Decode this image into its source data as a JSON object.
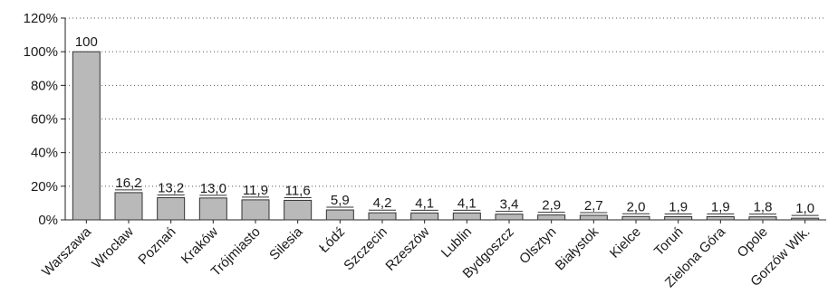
{
  "chart_data": {
    "type": "bar",
    "title": "",
    "xlabel": "",
    "ylabel": "",
    "ylim": [
      0,
      120
    ],
    "yticks": [
      0,
      20,
      40,
      60,
      80,
      100,
      120
    ],
    "ytick_labels": [
      "0%",
      "20%",
      "40%",
      "60%",
      "80%",
      "100%",
      "120%"
    ],
    "grid": true,
    "legend": "none",
    "bar_color": "#b9b9b9",
    "categories": [
      "Warszawa",
      "Wrocław",
      "Poznań",
      "Kraków",
      "Trójmiasto",
      "Silesia",
      "Łódź",
      "Szczecin",
      "Rzeszów",
      "Lublin",
      "Bydgoszcz",
      "Olsztyn",
      "Białystok",
      "Kielce",
      "Toruń",
      "Zielona Góra",
      "Opole",
      "Gorzów Wlk."
    ],
    "values": [
      100,
      16.2,
      13.2,
      13.0,
      11.9,
      11.6,
      5.9,
      4.2,
      4.1,
      4.1,
      3.4,
      2.9,
      2.7,
      2.0,
      1.9,
      1.9,
      1.8,
      1.0
    ],
    "value_labels": [
      "100",
      "16,2",
      "13,2",
      "13,0",
      "11,9",
      "11,6",
      "5,9",
      "4,2",
      "4,1",
      "4,1",
      "3,4",
      "2,9",
      "2,7",
      "2,0",
      "1,9",
      "1,9",
      "1,8",
      "1,0"
    ]
  }
}
